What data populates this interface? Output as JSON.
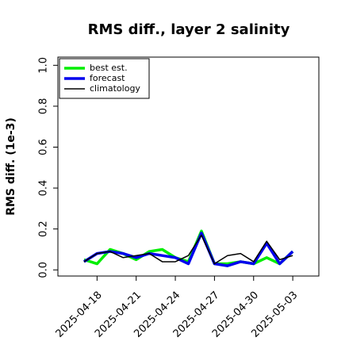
{
  "chart_data": {
    "type": "line",
    "title": "RMS diff., layer 2 salinity",
    "y_label": "RMS diff. (1e-3)",
    "x": [
      "2025-04-17",
      "2025-04-18",
      "2025-04-19",
      "2025-04-20",
      "2025-04-21",
      "2025-04-22",
      "2025-04-23",
      "2025-04-24",
      "2025-04-25",
      "2025-04-26",
      "2025-04-27",
      "2025-04-28",
      "2025-04-29",
      "2025-04-30",
      "2025-05-01",
      "2025-05-02",
      "2025-05-03"
    ],
    "series": [
      {
        "name": "best est.",
        "color": "#00ee00",
        "width": 3.5,
        "values": [
          0.05,
          0.03,
          0.1,
          0.08,
          0.05,
          0.09,
          0.1,
          0.06,
          0.04,
          0.19,
          0.03,
          0.03,
          0.04,
          0.03,
          0.06,
          0.03,
          0.09
        ]
      },
      {
        "name": "forecast",
        "color": "#0000ee",
        "width": 3.5,
        "values": [
          0.04,
          0.08,
          0.09,
          0.08,
          0.06,
          0.08,
          0.07,
          0.06,
          0.03,
          0.18,
          0.03,
          0.02,
          0.04,
          0.03,
          0.13,
          0.03,
          0.09
        ]
      },
      {
        "name": "climatology",
        "color": "#000000",
        "width": 1.5,
        "values": [
          0.04,
          0.08,
          0.09,
          0.06,
          0.07,
          0.08,
          0.04,
          0.04,
          0.07,
          0.17,
          0.03,
          0.07,
          0.08,
          0.04,
          0.14,
          0.05,
          0.07
        ]
      }
    ],
    "xlim": [
      "2025-04-15",
      "2025-05-05"
    ],
    "xticks": [
      "2025-04-18",
      "2025-04-21",
      "2025-04-24",
      "2025-04-27",
      "2025-04-30",
      "2025-05-03"
    ],
    "highlight_xtick": "2025-04-24",
    "highlight_color": "#228b22",
    "ylim": [
      -0.03,
      1.04
    ],
    "yticks": [
      {
        "value": 0,
        "label": "0.0"
      },
      0.2,
      0.4,
      0.6,
      0.8,
      {
        "value": 1,
        "label": "1.0"
      }
    ],
    "legend": "upper left"
  }
}
